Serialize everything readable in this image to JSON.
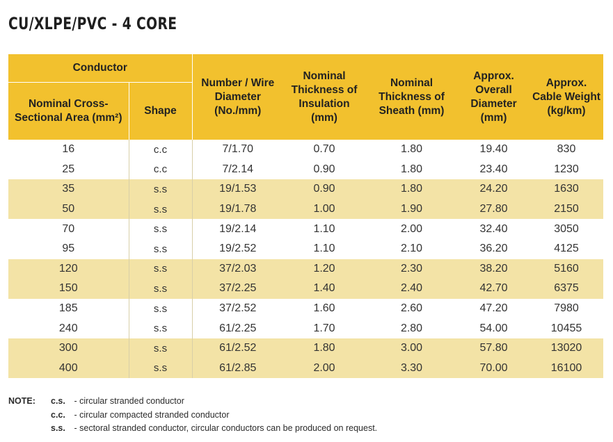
{
  "title": "CU/XLPE/PVC - 4 CORE",
  "table": {
    "group_header": "Conductor",
    "headers": {
      "area": "Nominal Cross-Sectional Area (mm²)",
      "shape": "Shape",
      "wire": "Number / Wire Diameter (No./mm)",
      "insulation": "Nominal Thickness of Insulation (mm)",
      "sheath": "Nominal Thickness of Sheath (mm)",
      "overall": "Approx. Overall Diameter (mm)",
      "weight": "Approx. Cable Weight (kg/km)"
    },
    "rows": [
      {
        "area": "16",
        "shape": "c.c",
        "wire": "7/1.70",
        "insulation": "0.70",
        "sheath": "1.80",
        "overall": "19.40",
        "weight": "830"
      },
      {
        "area": "25",
        "shape": "c.c",
        "wire": "7/2.14",
        "insulation": "0.90",
        "sheath": "1.80",
        "overall": "23.40",
        "weight": "1230"
      },
      {
        "area": "35",
        "shape": "s.s",
        "wire": "19/1.53",
        "insulation": "0.90",
        "sheath": "1.80",
        "overall": "24.20",
        "weight": "1630"
      },
      {
        "area": "50",
        "shape": "s.s",
        "wire": "19/1.78",
        "insulation": "1.00",
        "sheath": "1.90",
        "overall": "27.80",
        "weight": "2150"
      },
      {
        "area": "70",
        "shape": "s.s",
        "wire": "19/2.14",
        "insulation": "1.10",
        "sheath": "2.00",
        "overall": "32.40",
        "weight": "3050"
      },
      {
        "area": "95",
        "shape": "s.s",
        "wire": "19/2.52",
        "insulation": "1.10",
        "sheath": "2.10",
        "overall": "36.20",
        "weight": "4125"
      },
      {
        "area": "120",
        "shape": "s.s",
        "wire": "37/2.03",
        "insulation": "1.20",
        "sheath": "2.30",
        "overall": "38.20",
        "weight": "5160"
      },
      {
        "area": "150",
        "shape": "s.s",
        "wire": "37/2.25",
        "insulation": "1.40",
        "sheath": "2.40",
        "overall": "42.70",
        "weight": "6375"
      },
      {
        "area": "185",
        "shape": "s.s",
        "wire": "37/2.52",
        "insulation": "1.60",
        "sheath": "2.60",
        "overall": "47.20",
        "weight": "7980"
      },
      {
        "area": "240",
        "shape": "s.s",
        "wire": "61/2.25",
        "insulation": "1.70",
        "sheath": "2.80",
        "overall": "54.00",
        "weight": "10455"
      },
      {
        "area": "300",
        "shape": "s.s",
        "wire": "61/2.52",
        "insulation": "1.80",
        "sheath": "3.00",
        "overall": "57.80",
        "weight": "13020"
      },
      {
        "area": "400",
        "shape": "s.s",
        "wire": "61/2.85",
        "insulation": "2.00",
        "sheath": "3.30",
        "overall": "70.00",
        "weight": "16100"
      }
    ]
  },
  "notes": {
    "label": "NOTE:",
    "items": [
      {
        "abbr": "c.s.",
        "text": "- circular stranded conductor"
      },
      {
        "abbr": "c.c.",
        "text": "- circular compacted stranded conductor"
      },
      {
        "abbr": "s.s.",
        "text": "- sectoral stranded conductor, circular conductors can be produced on request."
      }
    ]
  },
  "colors": {
    "header": "#f2c12e",
    "band": "#f3e3a6"
  }
}
